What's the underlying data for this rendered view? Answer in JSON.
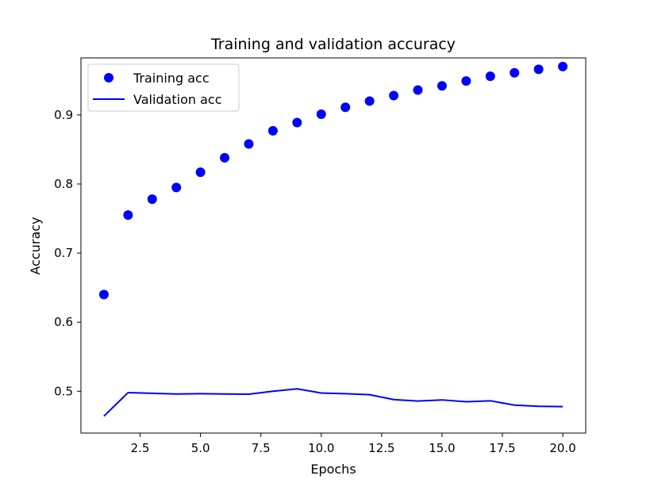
{
  "chart_data": {
    "type": "scatter",
    "title": "Training and validation accuracy",
    "xlabel": "Epochs",
    "ylabel": "Accuracy",
    "xlim": [
      0.05,
      20.95
    ],
    "ylim": [
      0.4395,
      0.9825
    ],
    "x_ticks": [
      2.5,
      5.0,
      7.5,
      10.0,
      12.5,
      15.0,
      17.5,
      20.0
    ],
    "x_tick_labels": [
      "2.5",
      "5.0",
      "7.5",
      "10.0",
      "12.5",
      "15.0",
      "17.5",
      "20.0"
    ],
    "y_ticks": [
      0.5,
      0.6,
      0.7,
      0.8,
      0.9
    ],
    "y_tick_labels": [
      "0.5",
      "0.6",
      "0.7",
      "0.8",
      "0.9"
    ],
    "grid": false,
    "legend_position": "top-left",
    "x": [
      1,
      2,
      3,
      4,
      5,
      6,
      7,
      8,
      9,
      10,
      11,
      12,
      13,
      14,
      15,
      16,
      17,
      18,
      19,
      20
    ],
    "series": [
      {
        "name": "Training acc",
        "style": "markers",
        "color": "#0000ff",
        "values": [
          0.64,
          0.755,
          0.778,
          0.795,
          0.817,
          0.838,
          0.858,
          0.877,
          0.889,
          0.901,
          0.911,
          0.92,
          0.928,
          0.936,
          0.942,
          0.949,
          0.956,
          0.961,
          0.966,
          0.97
        ]
      },
      {
        "name": "Validation acc",
        "style": "line",
        "color": "#0000ff",
        "values": [
          0.464,
          0.498,
          0.497,
          0.496,
          0.4965,
          0.496,
          0.4958,
          0.5,
          0.5035,
          0.4975,
          0.4965,
          0.495,
          0.488,
          0.4858,
          0.4875,
          0.4848,
          0.4862,
          0.48,
          0.4783,
          0.4778
        ]
      }
    ]
  }
}
